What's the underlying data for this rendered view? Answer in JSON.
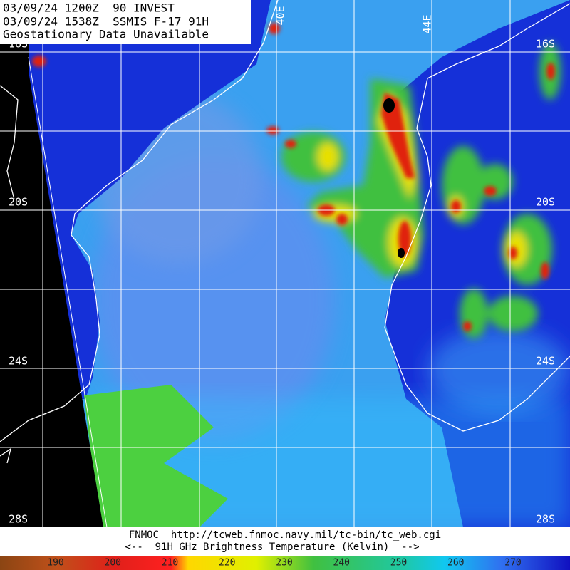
{
  "header": {
    "lines": [
      "03/09/24 1200Z  90 INVEST",
      "03/09/24 1538Z  SSMIS F-17 91H",
      "Geostationary Data Unavailable"
    ]
  },
  "lat_labels": [
    "16S",
    "20S",
    "24S",
    "28S"
  ],
  "lon_labels": [
    "40E",
    "44E"
  ],
  "footer": {
    "source": "FNMOC  http://tcweb.fnmoc.navy.mil/tc-bin/tc_web.cgi",
    "legend_title": "<--  91H GHz Brightness Temperature (Kelvin)  -->"
  },
  "colorbar": {
    "ticks": [
      190,
      200,
      210,
      220,
      230,
      240,
      250,
      260,
      270
    ]
  }
}
